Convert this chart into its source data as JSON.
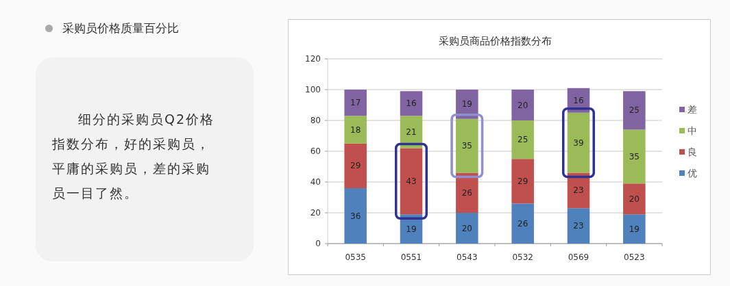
{
  "chart_data": [
    {
      "type": "other",
      "title": "采购员价格质量百分比",
      "annotations": [
        "细分的采购员Q2价格指数分布，好的采购员，平庸的采购员，差的采购员一目了然。"
      ]
    },
    {
      "type": "bar",
      "title": "采购员商品价格指数分布",
      "categories": [
        "0535",
        "0551",
        "0543",
        "0532",
        "0569",
        "0523"
      ],
      "stacked": true,
      "series": [
        {
          "name": "优",
          "color": "#4f81bd",
          "values": [
            36,
            19,
            20,
            26,
            23,
            19
          ]
        },
        {
          "name": "良",
          "color": "#c0504d",
          "values": [
            29,
            43,
            26,
            29,
            23,
            20
          ]
        },
        {
          "name": "中",
          "color": "#9bbb59",
          "values": [
            18,
            21,
            35,
            25,
            39,
            35
          ]
        },
        {
          "name": "差",
          "color": "#8064a2",
          "values": [
            17,
            16,
            19,
            20,
            16,
            25
          ]
        }
      ],
      "ylim": [
        0,
        120
      ],
      "yticks": [
        0,
        20,
        40,
        60,
        80,
        100,
        120
      ],
      "grid": "y",
      "legend": "right",
      "data_labels": true
    }
  ]
}
